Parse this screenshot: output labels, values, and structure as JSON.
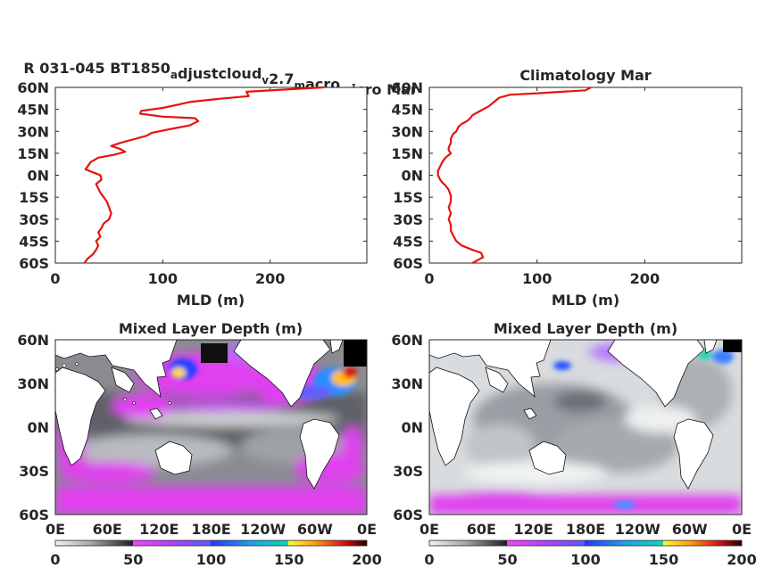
{
  "chart_data": [
    {
      "type": "line",
      "title_parts": [
        {
          "text": "R 031-045 BT1850",
          "sub": false
        },
        {
          "text": "a",
          "sub": true
        },
        {
          "text": "djustcloud",
          "sub": false
        },
        {
          "text": "v",
          "sub": true
        },
        {
          "text": "2.7",
          "sub": false
        },
        {
          "text": "m",
          "sub": true
        },
        {
          "text": "acro",
          "sub": false
        },
        {
          "text": "m",
          "sub": true
        },
        {
          "text": "icro Mar",
          "sub": false
        }
      ],
      "xlabel": "MLD (m)",
      "xlim": [
        0,
        290
      ],
      "ylim": [
        -60,
        60
      ],
      "xticks": [
        0,
        100,
        200
      ],
      "yticks": [
        60,
        45,
        30,
        15,
        0,
        -15,
        -30,
        -45,
        -60
      ],
      "ytick_labels": [
        "60N",
        "45N",
        "30N",
        "15N",
        "0N",
        "15S",
        "30S",
        "45S",
        "60S"
      ],
      "line_color": "#e8120c",
      "series": [
        {
          "points": [
            [
              250,
              60
            ],
            [
              225,
              59
            ],
            [
              178,
              57
            ],
            [
              180,
              54
            ],
            [
              150,
              52
            ],
            [
              125,
              50
            ],
            [
              113,
              48
            ],
            [
              100,
              46
            ],
            [
              80,
              44
            ],
            [
              79,
              42
            ],
            [
              100,
              40
            ],
            [
              130,
              39
            ],
            [
              133,
              37
            ],
            [
              125,
              34
            ],
            [
              110,
              32
            ],
            [
              90,
              29
            ],
            [
              85,
              27
            ],
            [
              75,
              25
            ],
            [
              60,
              22
            ],
            [
              52,
              20
            ],
            [
              60,
              18
            ],
            [
              65,
              16
            ],
            [
              55,
              14
            ],
            [
              40,
              12
            ],
            [
              33,
              9
            ],
            [
              30,
              6
            ],
            [
              28,
              4
            ],
            [
              35,
              2
            ],
            [
              42,
              0
            ],
            [
              43,
              -3
            ],
            [
              38,
              -6
            ],
            [
              40,
              -9
            ],
            [
              42,
              -12
            ],
            [
              45,
              -15
            ],
            [
              48,
              -18
            ],
            [
              50,
              -22
            ],
            [
              52,
              -26
            ],
            [
              50,
              -30
            ],
            [
              45,
              -33
            ],
            [
              43,
              -36
            ],
            [
              40,
              -39
            ],
            [
              42,
              -42
            ],
            [
              38,
              -45
            ],
            [
              40,
              -48
            ],
            [
              38,
              -51
            ],
            [
              35,
              -54
            ],
            [
              30,
              -57
            ],
            [
              27,
              -60
            ]
          ]
        }
      ]
    },
    {
      "type": "line",
      "title": "Climatology Mar",
      "xlabel": "MLD (m)",
      "xlim": [
        0,
        290
      ],
      "ylim": [
        -60,
        60
      ],
      "xticks": [
        0,
        100,
        200
      ],
      "yticks": [
        60,
        45,
        30,
        15,
        0,
        -15,
        -30,
        -45,
        -60
      ],
      "ytick_labels": [
        "60N",
        "45N",
        "30N",
        "15N",
        "0N",
        "15S",
        "30S",
        "45S",
        "60S"
      ],
      "line_color": "#e8120c",
      "series": [
        {
          "points": [
            [
              150,
              60
            ],
            [
              145,
              58
            ],
            [
              100,
              56
            ],
            [
              75,
              55
            ],
            [
              65,
              53
            ],
            [
              60,
              50
            ],
            [
              55,
              47
            ],
            [
              50,
              45
            ],
            [
              45,
              43
            ],
            [
              40,
              41
            ],
            [
              38,
              39
            ],
            [
              35,
              37
            ],
            [
              30,
              35
            ],
            [
              27,
              33
            ],
            [
              25,
              30
            ],
            [
              22,
              28
            ],
            [
              20,
              25
            ],
            [
              20,
              22
            ],
            [
              18,
              19
            ],
            [
              18,
              17
            ],
            [
              20,
              15
            ],
            [
              15,
              12
            ],
            [
              12,
              9
            ],
            [
              10,
              6
            ],
            [
              8,
              3
            ],
            [
              8,
              0
            ],
            [
              10,
              -3
            ],
            [
              12,
              -5
            ],
            [
              15,
              -7
            ],
            [
              18,
              -10
            ],
            [
              20,
              -14
            ],
            [
              20,
              -18
            ],
            [
              18,
              -22
            ],
            [
              20,
              -26
            ],
            [
              18,
              -30
            ],
            [
              20,
              -34
            ],
            [
              20,
              -38
            ],
            [
              22,
              -41
            ],
            [
              25,
              -45
            ],
            [
              30,
              -48
            ],
            [
              40,
              -51
            ],
            [
              48,
              -53
            ],
            [
              50,
              -56
            ],
            [
              45,
              -58
            ],
            [
              40,
              -60
            ]
          ]
        }
      ]
    },
    {
      "type": "heatmap",
      "title": "Mixed Layer Depth (m)",
      "xtick_labels": [
        "0E",
        "60E",
        "120E",
        "180E",
        "120W",
        "60W",
        "0E"
      ],
      "ytick_labels": [
        "60N",
        "30N",
        "0N",
        "30S",
        "60S"
      ],
      "ylim": [
        -60,
        60
      ],
      "colorbar": {
        "ticks": [
          0,
          50,
          100,
          150,
          200
        ],
        "range": [
          0,
          200
        ]
      }
    },
    {
      "type": "heatmap",
      "title": "Mixed Layer Depth (m)",
      "xtick_labels": [
        "0E",
        "60E",
        "120E",
        "180E",
        "120W",
        "60W",
        "0E"
      ],
      "ytick_labels": [
        "60N",
        "30N",
        "0N",
        "30S",
        "60S"
      ],
      "ylim": [
        -60,
        60
      ],
      "colorbar": {
        "ticks": [
          0,
          50,
          100,
          150,
          200
        ],
        "range": [
          0,
          200
        ]
      }
    }
  ]
}
